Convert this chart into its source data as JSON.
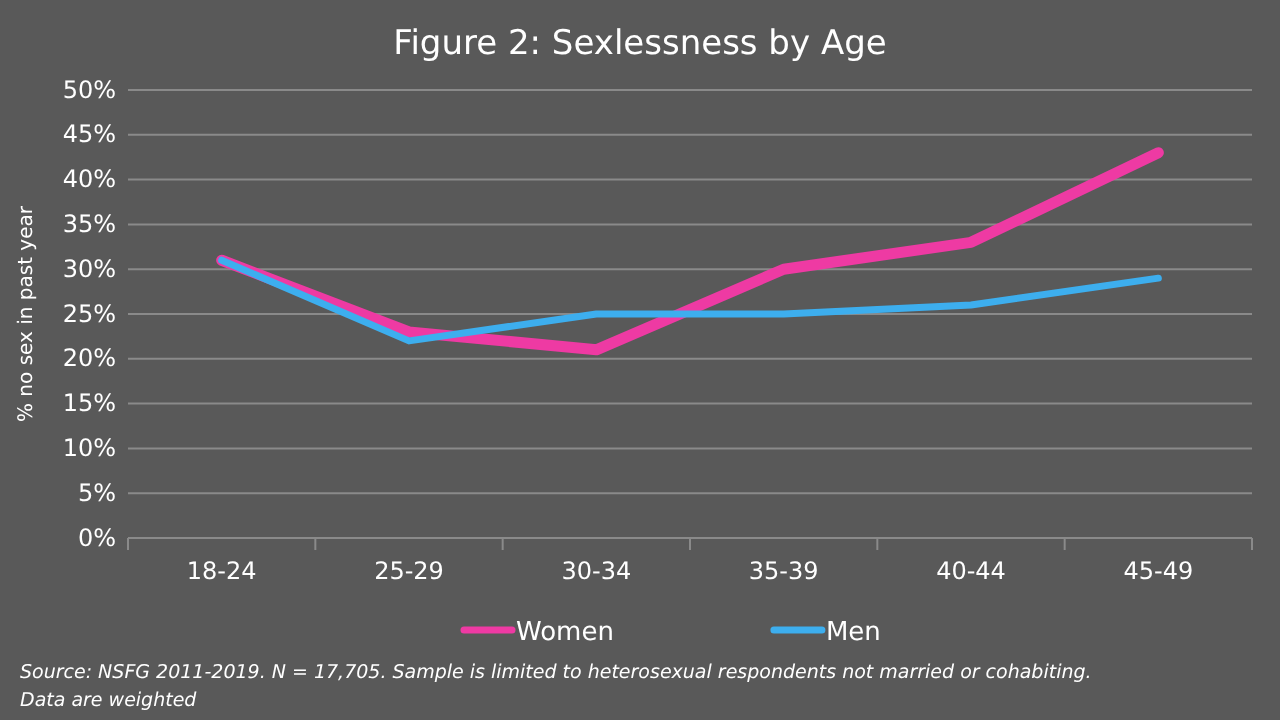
{
  "chart_data": {
    "type": "line",
    "title": "Figure 2:  Sexlessness by Age",
    "ylabel": "% no sex in past year",
    "categories": [
      "18-24",
      "25-29",
      "30-34",
      "35-39",
      "40-44",
      "45-49"
    ],
    "series": [
      {
        "name": "Women",
        "color": "#ee3aa3",
        "values": [
          31,
          23,
          21,
          30,
          33,
          43
        ]
      },
      {
        "name": "Men",
        "color": "#3daeee",
        "values": [
          31,
          22,
          25,
          25,
          26,
          29
        ]
      }
    ],
    "ylim": [
      0,
      50
    ],
    "yticks": [
      {
        "value": 0,
        "label": "0%"
      },
      {
        "value": 5,
        "label": "5%"
      },
      {
        "value": 10,
        "label": "10%"
      },
      {
        "value": 15,
        "label": "15%"
      },
      {
        "value": 20,
        "label": "20%"
      },
      {
        "value": 25,
        "label": "25%"
      },
      {
        "value": 30,
        "label": "30%"
      },
      {
        "value": 35,
        "label": "35%"
      },
      {
        "value": 40,
        "label": "40%"
      },
      {
        "value": 45,
        "label": "45%"
      },
      {
        "value": 50,
        "label": "50%"
      }
    ],
    "grid": "y",
    "legend": "bottom",
    "line_style": "solid",
    "annotations": [
      "Source: NSFG 2011-2019. N = 17,705. Sample is limited to heterosexual respondents not married or cohabiting.",
      "Data are weighted"
    ]
  }
}
